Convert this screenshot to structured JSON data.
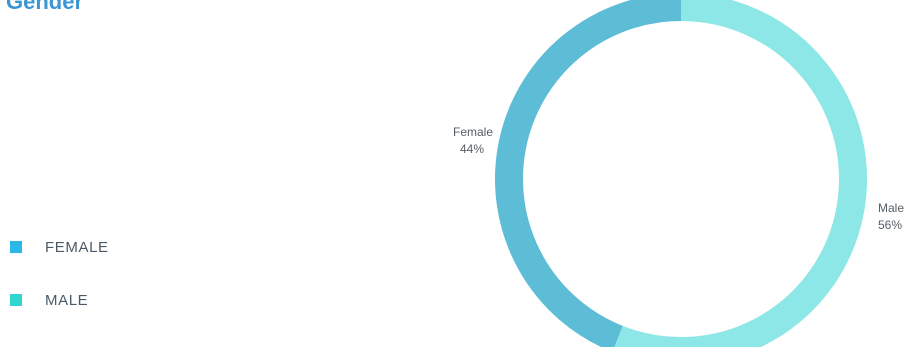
{
  "title": "Gender",
  "legend": {
    "items": [
      {
        "label": "FEMALE",
        "color": "#29b8e8"
      },
      {
        "label": "MALE",
        "color": "#2fd6cf"
      }
    ]
  },
  "chart_data": {
    "type": "pie",
    "title": "Gender",
    "donut": true,
    "slices": [
      {
        "name": "Female",
        "value": 44,
        "label": "Female",
        "percent_label": "44%",
        "color": "#5dbcd6"
      },
      {
        "name": "Male",
        "value": 56,
        "label": "Male",
        "percent_label": "56%",
        "color": "#8ee7e7"
      }
    ],
    "legend_position": "left"
  }
}
